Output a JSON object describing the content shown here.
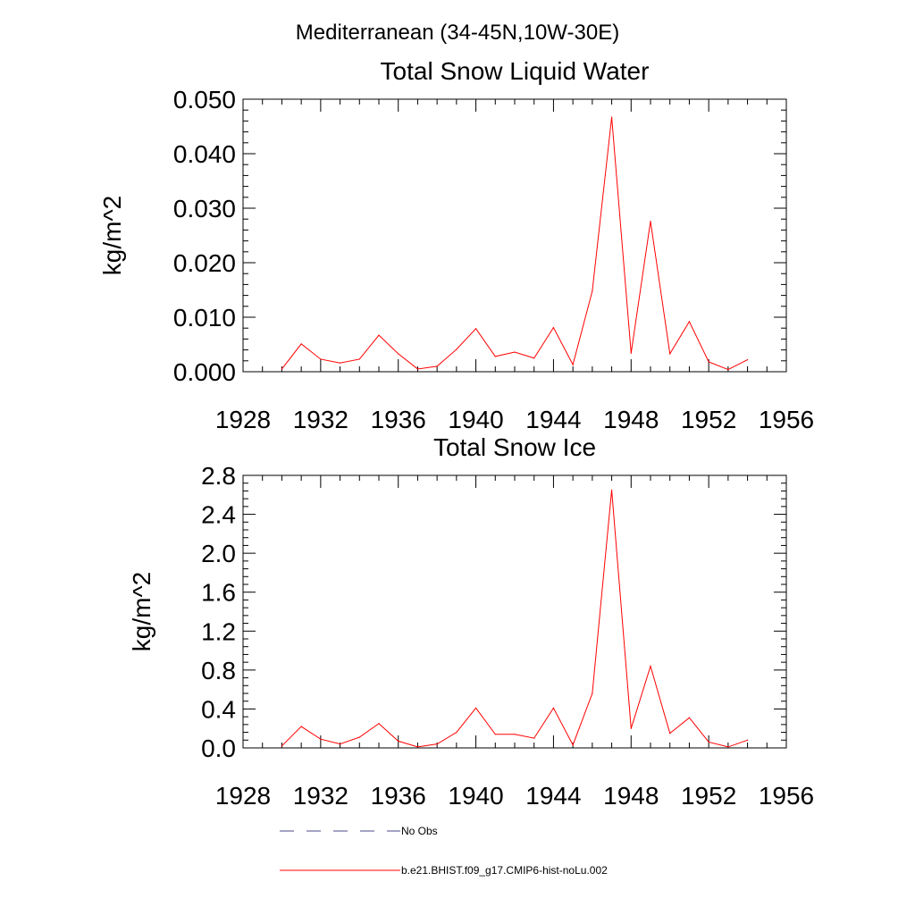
{
  "figure": {
    "suptitle": "Mediterranean (34-45N,10W-30E)"
  },
  "legend": {
    "items": [
      {
        "label": "No Obs",
        "color": "#4a4a8a",
        "style": "dashed"
      },
      {
        "label": "b.e21.BHIST.f09_g17.CMIP6-hist-noLu.002",
        "color": "#ff0000",
        "style": "solid"
      }
    ]
  },
  "chart_data": [
    {
      "type": "line",
      "title": "Total Snow Liquid Water",
      "xlabel": "",
      "ylabel": "kg/m^2",
      "xlim": [
        1928,
        1956
      ],
      "ylim": [
        0,
        0.05
      ],
      "xticks": [
        1928,
        1932,
        1936,
        1940,
        1944,
        1948,
        1952,
        1956
      ],
      "xtick_labels": [
        "1928",
        "1932",
        "1936",
        "1940",
        "1944",
        "1948",
        "1952",
        "1956"
      ],
      "yticks": [
        0,
        0.01,
        0.02,
        0.03,
        0.04,
        0.05
      ],
      "ytick_labels": [
        "0.000",
        "0.010",
        "0.020",
        "0.030",
        "0.040",
        "0.050"
      ],
      "grid": false,
      "series": [
        {
          "name": "b.e21.BHIST.f09_g17.CMIP6-hist-noLu.002",
          "color": "#ff0000",
          "x": [
            1930,
            1931,
            1932,
            1933,
            1934,
            1935,
            1936,
            1937,
            1938,
            1939,
            1940,
            1941,
            1942,
            1943,
            1944,
            1945,
            1946,
            1947,
            1948,
            1949,
            1950,
            1951,
            1952,
            1953,
            1954
          ],
          "y": [
            0.0005,
            0.0051,
            0.0023,
            0.0016,
            0.0023,
            0.0067,
            0.0033,
            0.0005,
            0.001,
            0.0041,
            0.0079,
            0.0028,
            0.0036,
            0.0025,
            0.0081,
            0.0013,
            0.0148,
            0.0467,
            0.0034,
            0.0276,
            0.0033,
            0.0092,
            0.0018,
            0.0004,
            0.0022
          ]
        }
      ]
    },
    {
      "type": "line",
      "title": "Total Snow Ice",
      "xlabel": "",
      "ylabel": "kg/m^2",
      "xlim": [
        1928,
        1956
      ],
      "ylim": [
        0,
        2.8
      ],
      "xticks": [
        1928,
        1932,
        1936,
        1940,
        1944,
        1948,
        1952,
        1956
      ],
      "xtick_labels": [
        "1928",
        "1932",
        "1936",
        "1940",
        "1944",
        "1948",
        "1952",
        "1956"
      ],
      "yticks": [
        0,
        0.4,
        0.8,
        1.2,
        1.6,
        2.0,
        2.4,
        2.8
      ],
      "ytick_labels": [
        "0.0",
        "0.4",
        "0.8",
        "1.2",
        "1.6",
        "2.0",
        "2.4",
        "2.8"
      ],
      "grid": false,
      "series": [
        {
          "name": "b.e21.BHIST.f09_g17.CMIP6-hist-noLu.002",
          "color": "#ff0000",
          "x": [
            1930,
            1931,
            1932,
            1933,
            1934,
            1935,
            1936,
            1937,
            1938,
            1939,
            1940,
            1941,
            1942,
            1943,
            1944,
            1945,
            1946,
            1947,
            1948,
            1949,
            1950,
            1951,
            1952,
            1953,
            1954
          ],
          "y": [
            0.02,
            0.22,
            0.09,
            0.04,
            0.11,
            0.25,
            0.07,
            0.01,
            0.04,
            0.16,
            0.41,
            0.14,
            0.14,
            0.1,
            0.41,
            0.03,
            0.56,
            2.65,
            0.2,
            0.84,
            0.15,
            0.31,
            0.06,
            0.01,
            0.08
          ]
        }
      ]
    }
  ]
}
